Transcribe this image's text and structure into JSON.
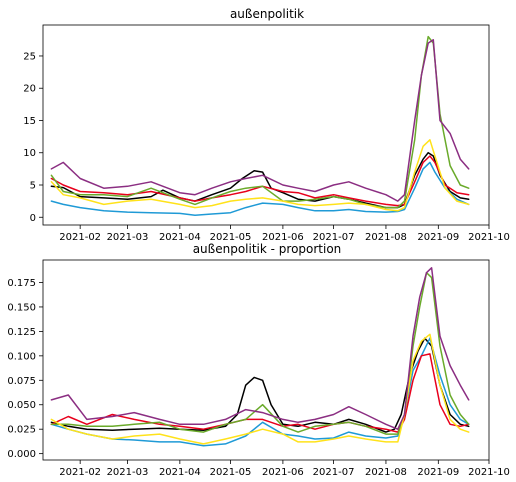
{
  "chart_data": [
    {
      "type": "line",
      "title": "außenpolitik",
      "xlabel": "",
      "ylabel": "",
      "xlim": [
        "2021-01-10",
        "2021-10-01"
      ],
      "ylim": [
        -1.2,
        29.8
      ],
      "xticks": [
        "2021-02-01",
        "2021-03-01",
        "2021-04-01",
        "2021-05-01",
        "2021-06-01",
        "2021-07-01",
        "2021-08-01",
        "2021-09-01",
        "2021-10-01"
      ],
      "xtick_labels": [
        "2021-02",
        "2021-03",
        "2021-04",
        "2021-05",
        "2021-06",
        "2021-07",
        "2021-08",
        "2021-09",
        "2021-10"
      ],
      "yticks": [
        0,
        5,
        10,
        15,
        20,
        25
      ],
      "ytick_labels": [
        "0",
        "5",
        "10",
        "15",
        "20",
        "25"
      ],
      "grid": false,
      "series": [
        {
          "color": "#000000",
          "x": [
            "2021-01-15",
            "2021-01-22",
            "2021-02-01",
            "2021-02-15",
            "2021-03-01",
            "2021-03-15",
            "2021-03-22",
            "2021-04-01",
            "2021-04-10",
            "2021-04-20",
            "2021-05-01",
            "2021-05-08",
            "2021-05-15",
            "2021-05-20",
            "2021-05-25",
            "2021-06-01",
            "2021-06-10",
            "2021-06-20",
            "2021-07-01",
            "2021-07-10",
            "2021-07-20",
            "2021-08-01",
            "2021-08-08",
            "2021-08-12",
            "2021-08-18",
            "2021-08-23",
            "2021-08-26",
            "2021-08-29",
            "2021-09-02",
            "2021-09-08",
            "2021-09-14",
            "2021-09-19"
          ],
          "y": [
            4.8,
            4.6,
            3.2,
            3.0,
            2.8,
            3.2,
            4.2,
            3.0,
            2.5,
            3.5,
            4.5,
            6.0,
            7.2,
            7.0,
            4.5,
            3.8,
            2.8,
            2.5,
            3.2,
            2.8,
            2.2,
            1.5,
            1.5,
            2.0,
            6.5,
            9.0,
            10.0,
            9.5,
            6.5,
            4.0,
            3.0,
            2.8
          ]
        },
        {
          "color": "#1f9ad6",
          "x": [
            "2021-01-15",
            "2021-01-22",
            "2021-02-01",
            "2021-02-15",
            "2021-03-01",
            "2021-03-15",
            "2021-04-01",
            "2021-04-10",
            "2021-04-20",
            "2021-05-01",
            "2021-05-10",
            "2021-05-20",
            "2021-06-01",
            "2021-06-10",
            "2021-06-20",
            "2021-07-01",
            "2021-07-10",
            "2021-07-20",
            "2021-08-01",
            "2021-08-08",
            "2021-08-12",
            "2021-08-18",
            "2021-08-23",
            "2021-08-27",
            "2021-08-30",
            "2021-09-05",
            "2021-09-12",
            "2021-09-19"
          ],
          "y": [
            2.5,
            2.0,
            1.5,
            1.0,
            0.8,
            0.7,
            0.6,
            0.3,
            0.5,
            0.7,
            1.5,
            2.2,
            2.0,
            1.5,
            1.0,
            1.0,
            1.2,
            0.9,
            0.8,
            0.9,
            1.2,
            4.5,
            7.5,
            8.5,
            7.0,
            4.5,
            2.8,
            2.0
          ]
        },
        {
          "color": "#e8001c",
          "x": [
            "2021-01-15",
            "2021-01-22",
            "2021-02-01",
            "2021-02-15",
            "2021-03-01",
            "2021-03-15",
            "2021-04-01",
            "2021-04-10",
            "2021-04-20",
            "2021-05-01",
            "2021-05-10",
            "2021-05-20",
            "2021-06-01",
            "2021-06-10",
            "2021-06-20",
            "2021-07-01",
            "2021-07-10",
            "2021-07-20",
            "2021-08-01",
            "2021-08-08",
            "2021-08-12",
            "2021-08-18",
            "2021-08-23",
            "2021-08-27",
            "2021-08-30",
            "2021-09-05",
            "2021-09-12",
            "2021-09-19"
          ],
          "y": [
            6.0,
            5.0,
            4.0,
            3.8,
            3.5,
            4.0,
            3.0,
            2.5,
            3.0,
            3.5,
            4.0,
            4.8,
            4.0,
            3.8,
            3.0,
            3.5,
            3.0,
            2.5,
            2.0,
            1.8,
            2.0,
            5.5,
            8.5,
            9.5,
            8.5,
            5.0,
            3.8,
            3.5
          ]
        },
        {
          "color": "#6aaa2a",
          "x": [
            "2021-01-15",
            "2021-01-22",
            "2021-02-01",
            "2021-02-15",
            "2021-03-01",
            "2021-03-15",
            "2021-04-01",
            "2021-04-10",
            "2021-04-20",
            "2021-05-01",
            "2021-05-10",
            "2021-05-20",
            "2021-06-01",
            "2021-06-10",
            "2021-06-20",
            "2021-07-01",
            "2021-07-10",
            "2021-07-20",
            "2021-08-01",
            "2021-08-08",
            "2021-08-12",
            "2021-08-18",
            "2021-08-22",
            "2021-08-26",
            "2021-08-29",
            "2021-09-02",
            "2021-09-08",
            "2021-09-14",
            "2021-09-19"
          ],
          "y": [
            6.5,
            4.0,
            3.5,
            3.5,
            3.2,
            4.5,
            2.8,
            2.0,
            3.0,
            4.0,
            4.5,
            4.8,
            2.5,
            2.5,
            2.8,
            3.2,
            2.8,
            2.0,
            1.5,
            1.5,
            2.5,
            12.0,
            22.0,
            28.0,
            27.0,
            16.0,
            8.0,
            5.0,
            4.5
          ]
        },
        {
          "color": "#ffe21a",
          "x": [
            "2021-01-15",
            "2021-01-22",
            "2021-02-01",
            "2021-02-15",
            "2021-03-01",
            "2021-03-15",
            "2021-04-01",
            "2021-04-10",
            "2021-04-20",
            "2021-05-01",
            "2021-05-10",
            "2021-05-20",
            "2021-06-01",
            "2021-06-10",
            "2021-06-20",
            "2021-07-01",
            "2021-07-10",
            "2021-07-20",
            "2021-08-01",
            "2021-08-08",
            "2021-08-12",
            "2021-08-18",
            "2021-08-23",
            "2021-08-27",
            "2021-08-30",
            "2021-09-05",
            "2021-09-12",
            "2021-09-19"
          ],
          "y": [
            5.5,
            3.5,
            3.0,
            2.0,
            2.5,
            2.8,
            2.0,
            1.5,
            1.8,
            2.5,
            2.8,
            3.0,
            2.5,
            2.0,
            1.8,
            2.0,
            2.2,
            2.0,
            1.2,
            1.0,
            1.5,
            7.0,
            11.0,
            12.0,
            9.5,
            4.5,
            2.5,
            2.0
          ]
        },
        {
          "color": "#8b2e82",
          "x": [
            "2021-01-15",
            "2021-01-22",
            "2021-02-01",
            "2021-02-15",
            "2021-03-01",
            "2021-03-15",
            "2021-04-01",
            "2021-04-10",
            "2021-04-20",
            "2021-05-01",
            "2021-05-10",
            "2021-05-20",
            "2021-06-01",
            "2021-06-10",
            "2021-06-20",
            "2021-07-01",
            "2021-07-10",
            "2021-07-20",
            "2021-08-01",
            "2021-08-08",
            "2021-08-12",
            "2021-08-18",
            "2021-08-22",
            "2021-08-26",
            "2021-08-29",
            "2021-09-02",
            "2021-09-08",
            "2021-09-14",
            "2021-09-19"
          ],
          "y": [
            7.5,
            8.5,
            6.0,
            4.5,
            4.8,
            5.5,
            3.8,
            3.5,
            4.5,
            5.5,
            6.0,
            6.5,
            5.0,
            4.5,
            4.0,
            5.0,
            5.5,
            4.5,
            3.5,
            2.5,
            3.5,
            15.0,
            22.0,
            27.0,
            27.5,
            15.0,
            13.0,
            9.0,
            7.5
          ]
        }
      ]
    },
    {
      "type": "line",
      "title": "außenpolitik - proportion",
      "xlabel": "",
      "ylabel": "",
      "xlim": [
        "2021-01-10",
        "2021-10-01"
      ],
      "ylim": [
        -0.0065,
        0.198
      ],
      "xticks": [
        "2021-02-01",
        "2021-03-01",
        "2021-04-01",
        "2021-05-01",
        "2021-06-01",
        "2021-07-01",
        "2021-08-01",
        "2021-09-01",
        "2021-10-01"
      ],
      "xtick_labels": [
        "2021-02",
        "2021-03",
        "2021-04",
        "2021-05",
        "2021-06",
        "2021-07",
        "2021-08",
        "2021-09",
        "2021-10"
      ],
      "yticks": [
        0.0,
        0.025,
        0.05,
        0.075,
        0.1,
        0.125,
        0.15,
        0.175
      ],
      "ytick_labels": [
        "0.000",
        "0.025",
        "0.050",
        "0.075",
        "0.100",
        "0.125",
        "0.150",
        "0.175"
      ],
      "grid": false,
      "series": [
        {
          "color": "#000000",
          "x": [
            "2021-01-15",
            "2021-01-25",
            "2021-02-05",
            "2021-02-20",
            "2021-03-05",
            "2021-03-20",
            "2021-04-01",
            "2021-04-15",
            "2021-04-28",
            "2021-05-05",
            "2021-05-10",
            "2021-05-15",
            "2021-05-20",
            "2021-05-25",
            "2021-06-01",
            "2021-06-10",
            "2021-06-20",
            "2021-07-01",
            "2021-07-10",
            "2021-07-20",
            "2021-08-01",
            "2021-08-06",
            "2021-08-10",
            "2021-08-15",
            "2021-08-20",
            "2021-08-24",
            "2021-08-28",
            "2021-09-02",
            "2021-09-08",
            "2021-09-14",
            "2021-09-19"
          ],
          "y": [
            0.032,
            0.028,
            0.025,
            0.024,
            0.025,
            0.026,
            0.025,
            0.024,
            0.028,
            0.04,
            0.07,
            0.078,
            0.075,
            0.05,
            0.03,
            0.028,
            0.032,
            0.03,
            0.035,
            0.03,
            0.022,
            0.025,
            0.04,
            0.08,
            0.105,
            0.118,
            0.11,
            0.07,
            0.04,
            0.03,
            0.028
          ]
        },
        {
          "color": "#1f9ad6",
          "x": [
            "2021-01-15",
            "2021-01-25",
            "2021-02-05",
            "2021-02-20",
            "2021-03-05",
            "2021-03-20",
            "2021-04-01",
            "2021-04-15",
            "2021-04-28",
            "2021-05-10",
            "2021-05-20",
            "2021-06-01",
            "2021-06-10",
            "2021-06-20",
            "2021-07-01",
            "2021-07-10",
            "2021-07-20",
            "2021-08-01",
            "2021-08-08",
            "2021-08-12",
            "2021-08-17",
            "2021-08-22",
            "2021-08-27",
            "2021-09-02",
            "2021-09-08",
            "2021-09-14",
            "2021-09-19"
          ],
          "y": [
            0.03,
            0.025,
            0.02,
            0.015,
            0.014,
            0.012,
            0.012,
            0.008,
            0.01,
            0.018,
            0.032,
            0.02,
            0.018,
            0.015,
            0.016,
            0.022,
            0.018,
            0.016,
            0.018,
            0.04,
            0.085,
            0.1,
            0.118,
            0.08,
            0.05,
            0.035,
            0.03
          ]
        },
        {
          "color": "#e8001c",
          "x": [
            "2021-01-15",
            "2021-01-25",
            "2021-02-05",
            "2021-02-20",
            "2021-03-05",
            "2021-03-20",
            "2021-04-01",
            "2021-04-15",
            "2021-04-28",
            "2021-05-10",
            "2021-05-20",
            "2021-06-01",
            "2021-06-10",
            "2021-06-20",
            "2021-07-01",
            "2021-07-10",
            "2021-07-20",
            "2021-08-01",
            "2021-08-08",
            "2021-08-12",
            "2021-08-17",
            "2021-08-22",
            "2021-08-27",
            "2021-09-02",
            "2021-09-08",
            "2021-09-14",
            "2021-09-19"
          ],
          "y": [
            0.03,
            0.038,
            0.03,
            0.04,
            0.035,
            0.03,
            0.028,
            0.025,
            0.03,
            0.035,
            0.035,
            0.028,
            0.03,
            0.025,
            0.03,
            0.032,
            0.028,
            0.025,
            0.022,
            0.035,
            0.075,
            0.1,
            0.102,
            0.05,
            0.03,
            0.028,
            0.03
          ]
        },
        {
          "color": "#6aaa2a",
          "x": [
            "2021-01-15",
            "2021-01-25",
            "2021-02-05",
            "2021-02-20",
            "2021-03-05",
            "2021-03-20",
            "2021-04-01",
            "2021-04-15",
            "2021-04-28",
            "2021-05-10",
            "2021-05-20",
            "2021-06-01",
            "2021-06-10",
            "2021-06-20",
            "2021-07-01",
            "2021-07-10",
            "2021-07-20",
            "2021-08-01",
            "2021-08-08",
            "2021-08-12",
            "2021-08-17",
            "2021-08-21",
            "2021-08-25",
            "2021-08-28",
            "2021-09-02",
            "2021-09-08",
            "2021-09-14",
            "2021-09-19"
          ],
          "y": [
            0.03,
            0.03,
            0.028,
            0.028,
            0.03,
            0.032,
            0.025,
            0.022,
            0.03,
            0.035,
            0.05,
            0.028,
            0.022,
            0.028,
            0.03,
            0.032,
            0.028,
            0.02,
            0.02,
            0.04,
            0.11,
            0.15,
            0.185,
            0.18,
            0.11,
            0.06,
            0.04,
            0.03
          ]
        },
        {
          "color": "#ffe21a",
          "x": [
            "2021-01-15",
            "2021-01-25",
            "2021-02-05",
            "2021-02-20",
            "2021-03-05",
            "2021-03-20",
            "2021-04-01",
            "2021-04-15",
            "2021-04-28",
            "2021-05-10",
            "2021-05-20",
            "2021-06-01",
            "2021-06-10",
            "2021-06-20",
            "2021-07-01",
            "2021-07-10",
            "2021-07-20",
            "2021-08-01",
            "2021-08-08",
            "2021-08-12",
            "2021-08-17",
            "2021-08-22",
            "2021-08-27",
            "2021-09-02",
            "2021-09-08",
            "2021-09-14",
            "2021-09-19"
          ],
          "y": [
            0.035,
            0.025,
            0.02,
            0.015,
            0.018,
            0.02,
            0.015,
            0.01,
            0.015,
            0.02,
            0.025,
            0.02,
            0.012,
            0.012,
            0.015,
            0.018,
            0.015,
            0.012,
            0.012,
            0.04,
            0.095,
            0.115,
            0.122,
            0.07,
            0.035,
            0.025,
            0.022
          ]
        },
        {
          "color": "#8b2e82",
          "x": [
            "2021-01-15",
            "2021-01-25",
            "2021-02-05",
            "2021-02-20",
            "2021-03-05",
            "2021-03-20",
            "2021-04-01",
            "2021-04-15",
            "2021-04-28",
            "2021-05-10",
            "2021-05-20",
            "2021-06-01",
            "2021-06-10",
            "2021-06-20",
            "2021-07-01",
            "2021-07-10",
            "2021-07-20",
            "2021-08-01",
            "2021-08-08",
            "2021-08-12",
            "2021-08-17",
            "2021-08-21",
            "2021-08-25",
            "2021-08-28",
            "2021-09-02",
            "2021-09-08",
            "2021-09-14",
            "2021-09-19"
          ],
          "y": [
            0.055,
            0.06,
            0.035,
            0.038,
            0.042,
            0.035,
            0.03,
            0.03,
            0.035,
            0.045,
            0.042,
            0.035,
            0.032,
            0.035,
            0.04,
            0.048,
            0.04,
            0.03,
            0.025,
            0.04,
            0.12,
            0.16,
            0.185,
            0.19,
            0.12,
            0.09,
            0.07,
            0.055
          ]
        }
      ]
    }
  ]
}
